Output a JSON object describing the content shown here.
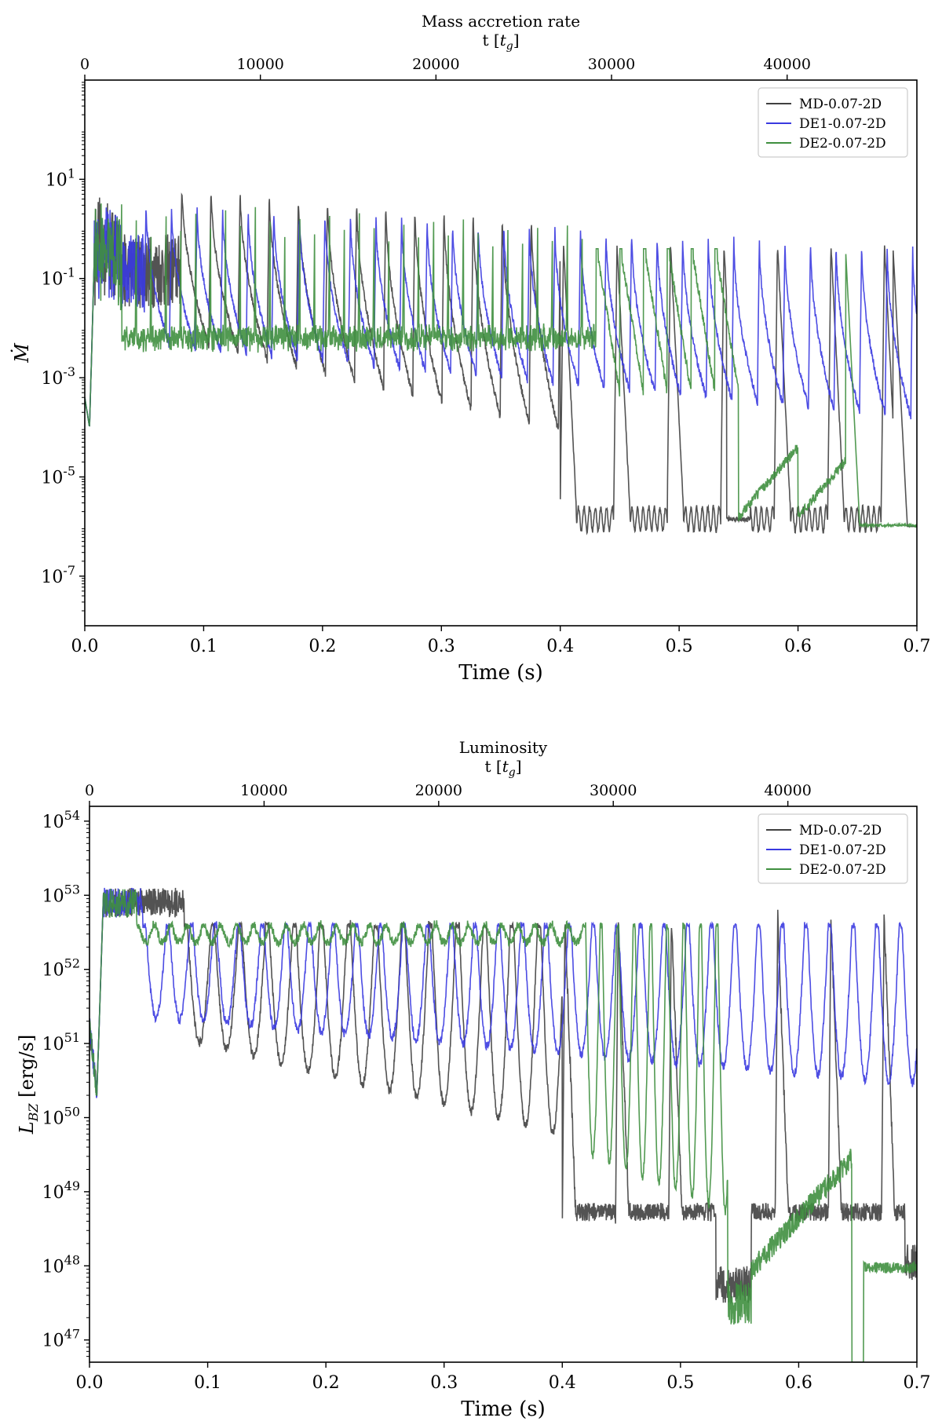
{
  "chart_data": [
    {
      "type": "line",
      "title": "Mass accretion rate",
      "top_axis_label": "t [t_g]",
      "top_ticks": [
        "0",
        "10000",
        "20000",
        "30000",
        "40000"
      ],
      "top_tick_values": [
        0,
        10000,
        20000,
        30000,
        40000
      ],
      "tg_per_second": 67700,
      "xlabel": "Time (s)",
      "ylabel": "Ṁ",
      "xlim": [
        0,
        0.7
      ],
      "ylim_log10": [
        -8,
        3
      ],
      "x_ticks": [
        "0.0",
        "0.1",
        "0.2",
        "0.3",
        "0.4",
        "0.5",
        "0.6",
        "0.7"
      ],
      "y_tick_exponents": [
        -7,
        -5,
        -3,
        -1,
        1
      ],
      "y_tick_base": "10",
      "legend_position": "top-right",
      "series": [
        {
          "name": "MD-0.07-2D",
          "color": "#404040",
          "period_s": 0.0245,
          "t_start_s": 0.08,
          "peak_start": 0.9,
          "peak_end": -0.35,
          "trough_start": -2.3,
          "trough_end": -5.9,
          "plateau_after_s": 0.54,
          "plateau_level": -5.95,
          "burst_after_s": 0.4,
          "burst_period_s": 0.045,
          "burst_peak": -0.35,
          "burst_floor": -5.9
        },
        {
          "name": "DE1-0.07-2D",
          "color": "#3a3ae0",
          "period_s": 0.0215,
          "t_start_s": 0.05,
          "peak_start": 0.5,
          "peak_end": -0.35,
          "trough_start": -2.4,
          "trough_end": -3.9,
          "plateau_after_s": null,
          "plateau_level": null
        },
        {
          "name": "DE2-0.07-2D",
          "color": "#3f8f3f",
          "period_s": 0.0125,
          "t_start_s": 0.03,
          "peak_start": 0.6,
          "peak_end": -0.35,
          "base_level": -1.9,
          "plateau_after_s": 0.55,
          "plateau_level": -6.0
        }
      ]
    },
    {
      "type": "line",
      "title": "Luminosity",
      "top_axis_label": "t [t_g]",
      "top_ticks": [
        "0",
        "10000",
        "20000",
        "30000",
        "40000"
      ],
      "top_tick_values": [
        0,
        10000,
        20000,
        30000,
        40000
      ],
      "tg_per_second": 67700,
      "xlabel": "Time (s)",
      "ylabel": "L_BZ  [erg/s]",
      "xlim": [
        0,
        0.7
      ],
      "ylim_log10": [
        46.7,
        54.2
      ],
      "x_ticks": [
        "0.0",
        "0.1",
        "0.2",
        "0.3",
        "0.4",
        "0.5",
        "0.6",
        "0.7"
      ],
      "y_tick_exponents": [
        47,
        48,
        49,
        50,
        51,
        52,
        53,
        54
      ],
      "y_tick_base": "10",
      "legend_position": "top-right",
      "series": [
        {
          "name": "MD-0.07-2D",
          "color": "#404040",
          "base_level": 52.55,
          "trough_start": 51.0,
          "trough_end": 48.5,
          "late_floor": 47.5
        },
        {
          "name": "DE1-0.07-2D",
          "color": "#3a3ae0",
          "base_level": 52.55,
          "trough_start": 51.3,
          "trough_end": 50.4
        },
        {
          "name": "DE2-0.07-2D",
          "color": "#3f8f3f",
          "base_level": 52.55,
          "trough_start": 52.0,
          "trough_end": 47.6
        }
      ]
    }
  ]
}
